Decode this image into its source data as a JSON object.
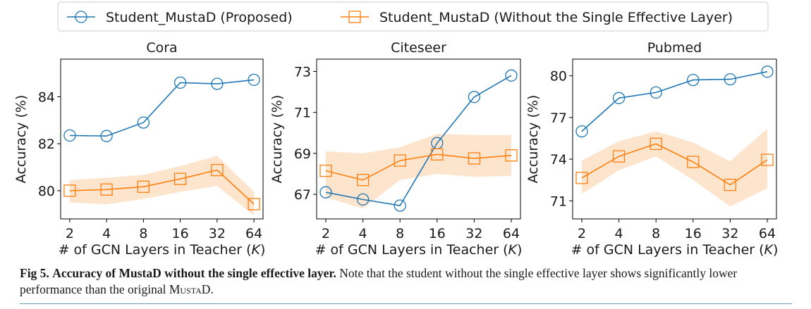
{
  "figure": {
    "caption_label": "Fig 5.",
    "caption_title": "Accuracy of MustaD without the single effective layer.",
    "caption_text_1": "Note that the student without the single effective layer shows significantly lower performance than the original",
    "caption_name": "MustaD",
    "caption_text_2": "."
  },
  "colors": {
    "proposed": "#1f77b4",
    "ablation": "#ff7f0e",
    "band": "#fde0c4"
  },
  "chart_data": [
    {
      "type": "line",
      "title": "Cora",
      "xlabel": "# of GCN Layers in Teacher (K)",
      "ylabel": "Accuracy (%)",
      "categories": [
        "2",
        "4",
        "8",
        "16",
        "32",
        "64"
      ],
      "ylim": [
        78.8,
        85.6
      ],
      "yticks": [
        "80",
        "82",
        "84"
      ],
      "legend": "top-center",
      "series": [
        {
          "name": "Student_MustaD (Proposed)",
          "marker": "circle",
          "values": [
            82.35,
            82.33,
            82.9,
            84.6,
            84.55,
            84.72
          ]
        },
        {
          "name": "Student_MustaD (Without the Single Effective Layer)",
          "marker": "square",
          "values": [
            80.0,
            80.05,
            80.17,
            80.5,
            80.88,
            79.43
          ],
          "band_lower": [
            79.5,
            79.42,
            79.65,
            79.95,
            80.2,
            78.95
          ],
          "band_upper": [
            80.45,
            80.55,
            80.68,
            81.05,
            81.48,
            79.95
          ]
        }
      ]
    },
    {
      "type": "line",
      "title": "Citeseer",
      "xlabel": "# of GCN Layers in Teacher (K)",
      "ylabel": "Accuracy (%)",
      "categories": [
        "2",
        "4",
        "8",
        "16",
        "32",
        "64"
      ],
      "ylim": [
        65.8,
        73.6
      ],
      "yticks": [
        "67",
        "69",
        "71",
        "73"
      ],
      "series": [
        {
          "name": "Student_MustaD (Proposed)",
          "marker": "circle",
          "values": [
            67.1,
            66.75,
            66.45,
            69.5,
            71.75,
            72.8
          ]
        },
        {
          "name": "Student_MustaD (Without the Single Effective Layer)",
          "marker": "square",
          "values": [
            68.15,
            67.7,
            68.65,
            68.95,
            68.75,
            68.9
          ],
          "band_lower": [
            66.85,
            66.3,
            67.7,
            68.0,
            67.85,
            67.9
          ],
          "band_upper": [
            69.1,
            69.0,
            69.3,
            69.95,
            69.9,
            69.9
          ]
        }
      ]
    },
    {
      "type": "line",
      "title": "Pubmed",
      "xlabel": "# of GCN Layers in Teacher (K)",
      "ylabel": "Accuracy (%)",
      "categories": [
        "2",
        "4",
        "8",
        "16",
        "32",
        "64"
      ],
      "ylim": [
        69.7,
        81.2
      ],
      "yticks": [
        "71",
        "74",
        "77",
        "80"
      ],
      "series": [
        {
          "name": "Student_MustaD (Proposed)",
          "marker": "circle",
          "values": [
            76.0,
            78.4,
            78.8,
            79.7,
            79.75,
            80.3
          ]
        },
        {
          "name": "Student_MustaD (Without the Single Effective Layer)",
          "marker": "square",
          "values": [
            72.65,
            74.2,
            75.1,
            73.8,
            72.15,
            73.95
          ],
          "band_lower": [
            71.5,
            73.2,
            74.2,
            72.5,
            70.6,
            71.9
          ],
          "band_upper": [
            73.9,
            75.3,
            76.0,
            75.2,
            73.85,
            76.2
          ]
        }
      ]
    }
  ]
}
